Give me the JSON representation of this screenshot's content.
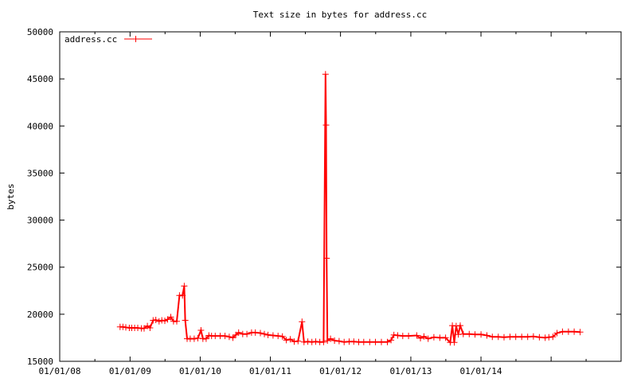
{
  "chart_data": {
    "type": "line",
    "title": "Text size in bytes for address.cc",
    "xlabel": "",
    "ylabel": "bytes",
    "ylim": [
      15000,
      50000
    ],
    "xlim": [
      "2008-01-01",
      "2015-12-31"
    ],
    "x_ticks": [
      "01/01/08",
      "01/01/09",
      "01/01/10",
      "01/01/11",
      "01/01/12",
      "01/01/13",
      "01/01/14"
    ],
    "y_ticks": [
      15000,
      20000,
      25000,
      30000,
      35000,
      40000,
      45000,
      50000
    ],
    "grid": false,
    "legend": "top-left",
    "color": "#ff0000",
    "marker": "plus",
    "series": [
      {
        "name": "address.cc",
        "points": [
          [
            "2008-11-10",
            18650
          ],
          [
            "2008-11-25",
            18650
          ],
          [
            "2008-12-10",
            18600
          ],
          [
            "2008-12-28",
            18550
          ],
          [
            "2009-01-10",
            18550
          ],
          [
            "2009-01-25",
            18550
          ],
          [
            "2009-02-10",
            18550
          ],
          [
            "2009-03-01",
            18500
          ],
          [
            "2009-03-15",
            18500
          ],
          [
            "2009-04-01",
            18750
          ],
          [
            "2009-04-15",
            18550
          ],
          [
            "2009-05-01",
            19350
          ],
          [
            "2009-05-15",
            19400
          ],
          [
            "2009-06-01",
            19250
          ],
          [
            "2009-06-15",
            19350
          ],
          [
            "2009-07-01",
            19300
          ],
          [
            "2009-07-15",
            19450
          ],
          [
            "2009-08-01",
            19700
          ],
          [
            "2009-08-15",
            19250
          ],
          [
            "2009-09-01",
            19250
          ],
          [
            "2009-09-15",
            22000
          ],
          [
            "2009-10-01",
            22000
          ],
          [
            "2009-10-10",
            23000
          ],
          [
            "2009-10-15",
            19350
          ],
          [
            "2009-10-25",
            17400
          ],
          [
            "2009-11-10",
            17400
          ],
          [
            "2009-12-01",
            17400
          ],
          [
            "2009-12-20",
            17450
          ],
          [
            "2010-01-05",
            18300
          ],
          [
            "2010-01-15",
            17400
          ],
          [
            "2010-02-01",
            17400
          ],
          [
            "2010-02-15",
            17750
          ],
          [
            "2010-03-01",
            17700
          ],
          [
            "2010-03-20",
            17700
          ],
          [
            "2010-04-15",
            17700
          ],
          [
            "2010-05-10",
            17700
          ],
          [
            "2010-06-01",
            17600
          ],
          [
            "2010-06-20",
            17500
          ],
          [
            "2010-07-05",
            17800
          ],
          [
            "2010-07-20",
            18050
          ],
          [
            "2010-08-10",
            17900
          ],
          [
            "2010-09-01",
            17900
          ],
          [
            "2010-09-25",
            18050
          ],
          [
            "2010-10-15",
            18050
          ],
          [
            "2010-11-10",
            18000
          ],
          [
            "2010-12-01",
            17900
          ],
          [
            "2010-12-20",
            17800
          ],
          [
            "2011-01-15",
            17750
          ],
          [
            "2011-02-10",
            17700
          ],
          [
            "2011-03-05",
            17650
          ],
          [
            "2011-03-25",
            17250
          ],
          [
            "2011-04-15",
            17350
          ],
          [
            "2011-05-05",
            17100
          ],
          [
            "2011-05-25",
            17150
          ],
          [
            "2011-06-15",
            19200
          ],
          [
            "2011-06-25",
            17050
          ],
          [
            "2011-07-15",
            17100
          ],
          [
            "2011-08-05",
            17050
          ],
          [
            "2011-08-25",
            17100
          ],
          [
            "2011-09-15",
            17050
          ],
          [
            "2011-10-05",
            17050
          ],
          [
            "2011-10-15",
            45500
          ],
          [
            "2011-10-18",
            40100
          ],
          [
            "2011-10-21",
            25950
          ],
          [
            "2011-10-25",
            17200
          ],
          [
            "2011-11-10",
            17400
          ],
          [
            "2011-12-01",
            17200
          ],
          [
            "2011-12-25",
            17150
          ],
          [
            "2012-01-20",
            17050
          ],
          [
            "2012-02-15",
            17100
          ],
          [
            "2012-03-10",
            17100
          ],
          [
            "2012-04-05",
            17050
          ],
          [
            "2012-05-01",
            17050
          ],
          [
            "2012-06-01",
            17050
          ],
          [
            "2012-07-01",
            17050
          ],
          [
            "2012-08-01",
            17050
          ],
          [
            "2012-09-01",
            17050
          ],
          [
            "2012-09-20",
            17250
          ],
          [
            "2012-10-05",
            17800
          ],
          [
            "2012-10-25",
            17750
          ],
          [
            "2012-11-20",
            17700
          ],
          [
            "2012-12-20",
            17700
          ],
          [
            "2013-02-01",
            17750
          ],
          [
            "2013-02-20",
            17450
          ],
          [
            "2013-03-10",
            17650
          ],
          [
            "2013-04-01",
            17400
          ],
          [
            "2013-05-01",
            17550
          ],
          [
            "2013-06-01",
            17500
          ],
          [
            "2013-07-01",
            17500
          ],
          [
            "2013-07-25",
            17000
          ],
          [
            "2013-08-05",
            18800
          ],
          [
            "2013-08-15",
            17000
          ],
          [
            "2013-08-25",
            18750
          ],
          [
            "2013-09-05",
            17850
          ],
          [
            "2013-09-15",
            18800
          ],
          [
            "2013-10-01",
            17900
          ],
          [
            "2013-11-01",
            17900
          ],
          [
            "2013-12-01",
            17850
          ],
          [
            "2014-01-01",
            17850
          ],
          [
            "2014-02-01",
            17750
          ],
          [
            "2014-03-01",
            17600
          ],
          [
            "2014-04-01",
            17600
          ],
          [
            "2014-05-01",
            17550
          ],
          [
            "2014-06-01",
            17600
          ],
          [
            "2014-07-01",
            17600
          ],
          [
            "2014-08-01",
            17600
          ],
          [
            "2014-09-01",
            17600
          ],
          [
            "2014-10-01",
            17650
          ],
          [
            "2014-11-01",
            17550
          ],
          [
            "2014-12-01",
            17500
          ],
          [
            "2014-12-20",
            17550
          ],
          [
            "2015-01-10",
            17600
          ],
          [
            "2015-02-01",
            18000
          ],
          [
            "2015-03-01",
            18150
          ],
          [
            "2015-04-01",
            18150
          ],
          [
            "2015-05-01",
            18150
          ],
          [
            "2015-06-01",
            18100
          ]
        ]
      }
    ]
  }
}
